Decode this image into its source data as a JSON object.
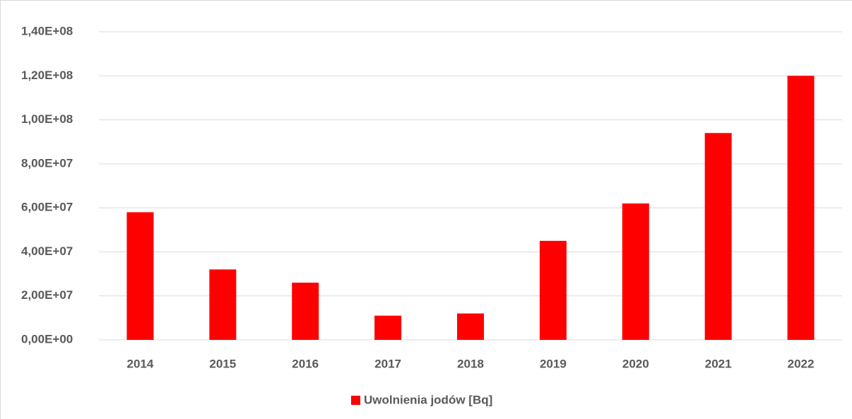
{
  "chart_data": {
    "type": "bar",
    "categories": [
      "2014",
      "2015",
      "2016",
      "2017",
      "2018",
      "2019",
      "2020",
      "2021",
      "2022"
    ],
    "series": [
      {
        "name": "Uwolnienia jodów [Bq]",
        "color": "#ff0000",
        "values": [
          58000000,
          32000000,
          26000000,
          11000000,
          12000000,
          45000000,
          62000000,
          94000000,
          120000000
        ]
      }
    ],
    "ylim": [
      0,
      140000000
    ],
    "yticks": [
      {
        "value": 0,
        "label": "0,00E+00"
      },
      {
        "value": 20000000,
        "label": "2,00E+07"
      },
      {
        "value": 40000000,
        "label": "4,00E+07"
      },
      {
        "value": 60000000,
        "label": "6,00E+07"
      },
      {
        "value": 80000000,
        "label": "8,00E+07"
      },
      {
        "value": 100000000,
        "label": "1,00E+08"
      },
      {
        "value": 120000000,
        "label": "1,20E+08"
      },
      {
        "value": 140000000,
        "label": "1,40E+08"
      }
    ],
    "grid": true,
    "legend": "bottom"
  }
}
